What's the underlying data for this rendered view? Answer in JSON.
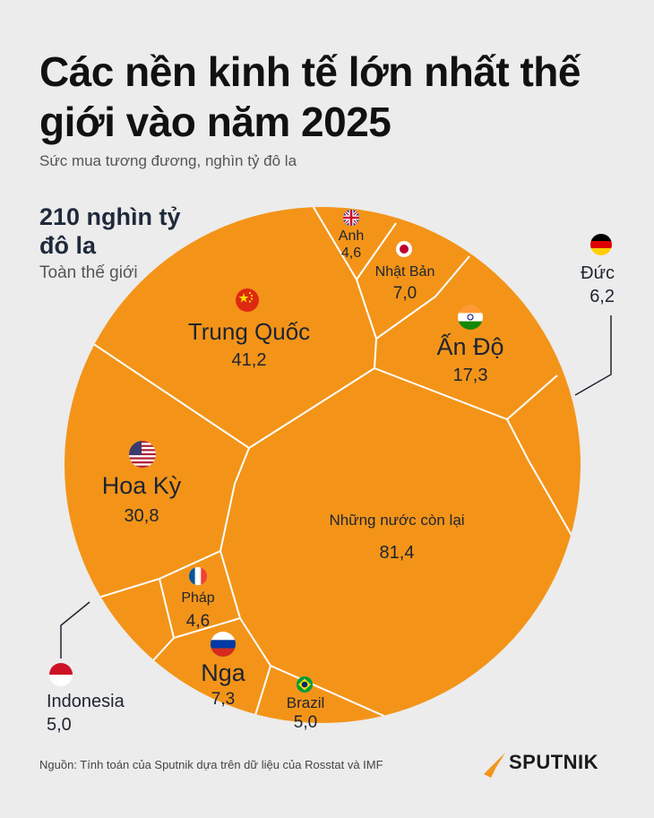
{
  "header": {
    "title": "Các nền kinh tế lớn nhất thế giới vào năm 2025",
    "subtitle": "Sức mua tương đương, nghìn tỷ đô la"
  },
  "total": {
    "value_label": "210 nghìn tỷ đô la",
    "scope_label": "Toàn thế giới"
  },
  "footer": {
    "source": "Nguồn: Tính toán của Sputnik dựa trên dữ liệu của Rosstat và IMF",
    "brand": "SPUTNIK"
  },
  "colors": {
    "cell_fill": "#f39419",
    "cell_border": "#ffffff",
    "background": "#ececec"
  },
  "chart_data": {
    "type": "voronoi-treemap",
    "unit": "nghìn tỷ đô la",
    "total": 210,
    "items": [
      {
        "name": "Anh",
        "value": 4.6,
        "value_label": "4,6",
        "flag": "uk-flag"
      },
      {
        "name": "Nhật Bản",
        "value": 7.0,
        "value_label": "7,0",
        "flag": "japan-flag"
      },
      {
        "name": "Đức",
        "value": 6.2,
        "value_label": "6,2",
        "flag": "germany-flag"
      },
      {
        "name": "Trung Quốc",
        "value": 41.2,
        "value_label": "41,2",
        "flag": "china-flag"
      },
      {
        "name": "Ấn Độ",
        "value": 17.3,
        "value_label": "17,3",
        "flag": "india-flag"
      },
      {
        "name": "Hoa Kỳ",
        "value": 30.8,
        "value_label": "30,8",
        "flag": "usa-flag"
      },
      {
        "name": "Những nước còn lại",
        "value": 81.4,
        "value_label": "81,4",
        "flag": ""
      },
      {
        "name": "Pháp",
        "value": 4.6,
        "value_label": "4,6",
        "flag": "france-flag"
      },
      {
        "name": "Indonesia",
        "value": 5.0,
        "value_label": "5,0",
        "flag": "indonesia-flag"
      },
      {
        "name": "Nga",
        "value": 7.3,
        "value_label": "7,3",
        "flag": "russia-flag"
      },
      {
        "name": "Brazil",
        "value": 5.0,
        "value_label": "5,0",
        "flag": "brazil-flag"
      }
    ]
  }
}
